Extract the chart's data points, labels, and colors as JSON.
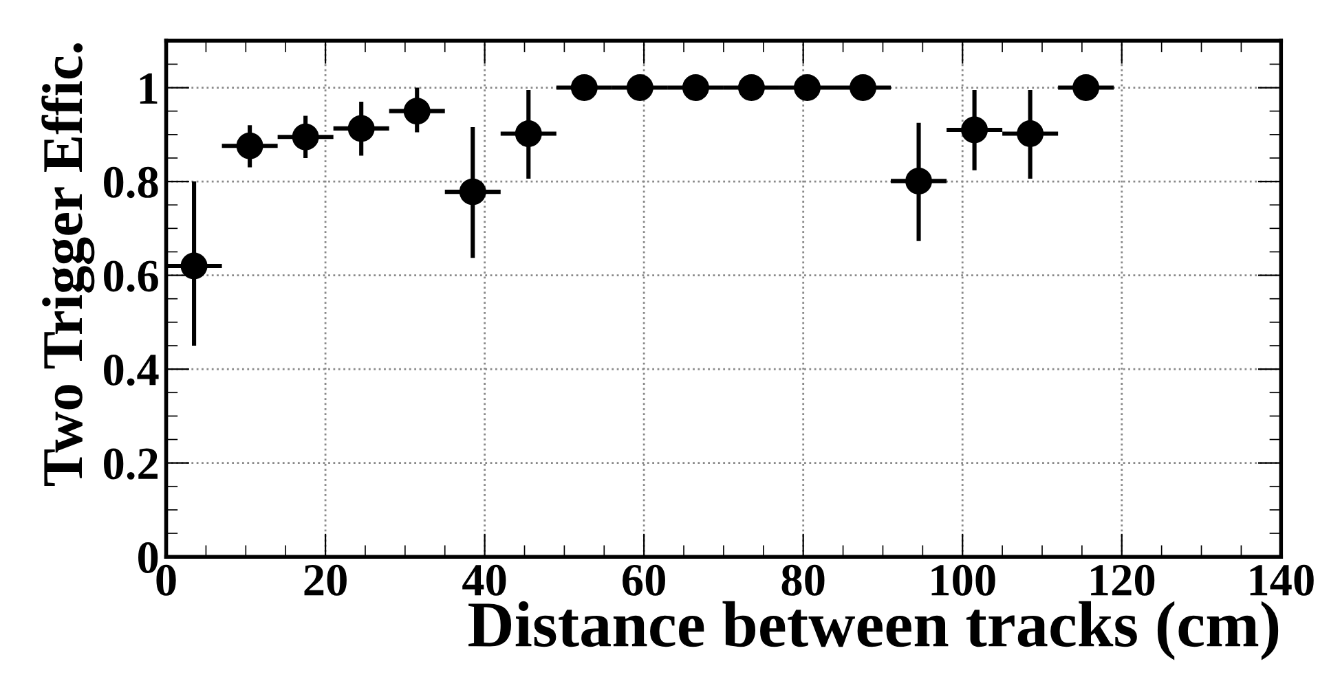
{
  "chart_data": {
    "type": "scatter",
    "xlabel": "Distance between tracks (cm)",
    "ylabel": "Two Trigger Effic.",
    "x": [
      3.5,
      10.5,
      17.5,
      24.5,
      31.5,
      38.5,
      45.5,
      52.5,
      59.5,
      66.5,
      73.5,
      80.5,
      87.5,
      94.5,
      101.5,
      108.5,
      115.5
    ],
    "values": [
      0.62,
      0.876,
      0.895,
      0.913,
      0.95,
      0.778,
      0.902,
      1.0,
      1.0,
      1.0,
      1.0,
      1.0,
      1.0,
      0.801,
      0.91,
      0.902,
      1.0
    ],
    "errors": [
      [
        0.45,
        0.8
      ],
      [
        0.83,
        0.92
      ],
      [
        0.85,
        0.94
      ],
      [
        0.855,
        0.97
      ],
      [
        0.905,
        1.0
      ],
      [
        0.637,
        0.916
      ],
      [
        0.806,
        0.995
      ],
      null,
      null,
      null,
      null,
      null,
      null,
      [
        0.673,
        0.925
      ],
      [
        0.824,
        0.995
      ],
      [
        0.806,
        0.995
      ],
      null
    ],
    "xerrors": [
      3.5,
      3.5,
      3.5,
      3.5,
      3.5,
      3.5,
      3.5,
      3.5,
      3.5,
      3.5,
      3.5,
      3.5,
      3.5,
      3.5,
      3.5,
      3.5,
      3.5
    ],
    "color": "#000000",
    "marker": "circle",
    "grid": true,
    "xlim": [
      0,
      140
    ],
    "xticks": [
      0,
      20,
      40,
      60,
      80,
      100,
      120,
      140
    ],
    "ylim": [
      0,
      1.1
    ],
    "yticks": [
      0,
      0.2,
      0.4,
      0.6,
      0.8,
      1
    ]
  }
}
